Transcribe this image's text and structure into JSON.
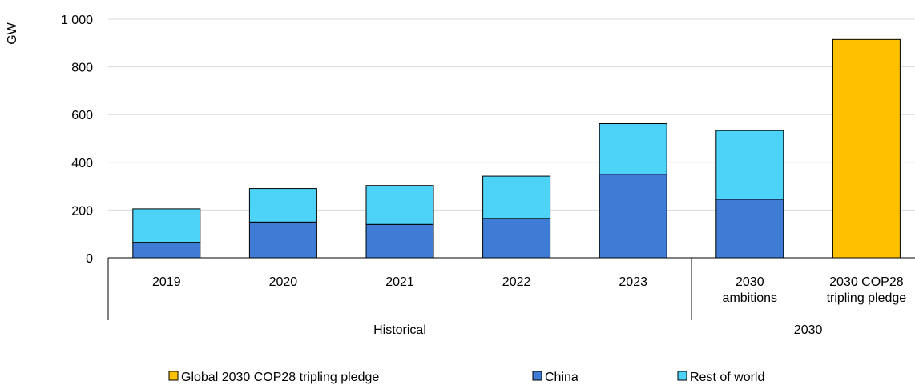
{
  "chart_data": {
    "type": "bar",
    "stacked": true,
    "ylabel": "GW",
    "ylim": [
      0,
      1000
    ],
    "yticks": [
      0,
      200,
      400,
      600,
      800,
      1000
    ],
    "ytick_labels": [
      "0",
      "200",
      "400",
      "600",
      "800",
      "1 000"
    ],
    "grid": true,
    "legend_position": "bottom",
    "categories": [
      "2019",
      "2020",
      "2021",
      "2022",
      "2023",
      "2030 ambitions",
      "2030 COP28 tripling pledge"
    ],
    "category_lines": [
      [
        "2019"
      ],
      [
        "2020"
      ],
      [
        "2021"
      ],
      [
        "2022"
      ],
      [
        "2023"
      ],
      [
        "2030",
        "ambitions"
      ],
      [
        "2030 COP28",
        "tripling pledge"
      ]
    ],
    "groups": [
      {
        "label": "Historical",
        "categories": [
          "2019",
          "2020",
          "2021",
          "2022",
          "2023"
        ]
      },
      {
        "label": "2030",
        "categories": [
          "2030 ambitions",
          "2030 COP28 tripling pledge"
        ]
      }
    ],
    "series": [
      {
        "name": "Global 2030 COP28 tripling pledge",
        "color": "#FFC000",
        "values": [
          0,
          0,
          0,
          0,
          0,
          0,
          915
        ]
      },
      {
        "name": "China",
        "color": "#3E7CD6",
        "values": [
          65,
          150,
          140,
          165,
          350,
          245,
          0
        ]
      },
      {
        "name": "Rest of world",
        "color": "#4DD2F8",
        "values": [
          140,
          140,
          163,
          177,
          212,
          288,
          0
        ]
      }
    ]
  }
}
